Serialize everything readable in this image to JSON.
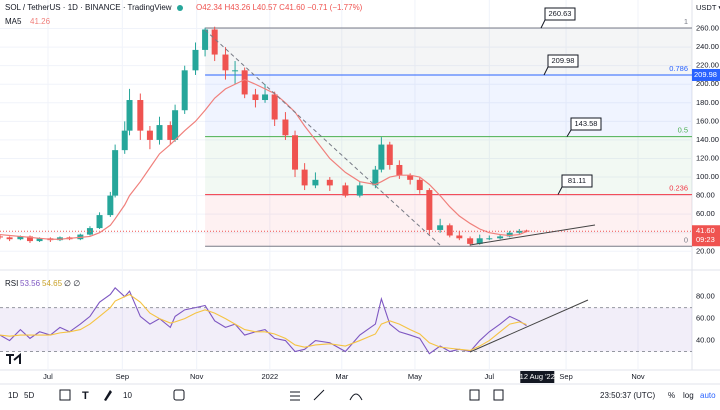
{
  "header": {
    "symbol": "SOL / TetherUS · 1D · BINANCE · TradingView",
    "ohlc": "O42.34 H43.26 L40.57 C41.60 −0.71 (−1.77%)",
    "ma_label": "MA5",
    "ma_value": "41.26",
    "currency": "USDT ▾"
  },
  "chart_data": [
    {
      "type": "candlestick",
      "x": [
        0,
        8,
        17,
        25,
        33,
        42,
        50,
        58,
        67,
        75,
        83,
        92,
        96,
        104,
        108,
        117,
        125,
        133,
        142,
        146,
        154,
        163,
        171,
        179,
        188,
        196,
        204,
        213,
        221,
        229,
        238,
        246,
        254,
        263,
        275,
        288,
        300,
        313,
        318,
        325,
        333,
        342,
        350,
        358,
        367,
        375,
        383,
        392,
        400,
        408,
        417,
        425,
        433,
        439
      ],
      "open": [
        36,
        35,
        33,
        36,
        31,
        34,
        32,
        35,
        33,
        38,
        45,
        59,
        80,
        129,
        150,
        183,
        150,
        140,
        156,
        140,
        172,
        215,
        237,
        259,
        232,
        215,
        215,
        189,
        183,
        189,
        162,
        145,
        108,
        91,
        97,
        91,
        80,
        91,
        108,
        135,
        113,
        102,
        97,
        86,
        43,
        48,
        37,
        34,
        28,
        34,
        34,
        36,
        40,
        42.34
      ],
      "high": [
        38,
        36,
        37,
        37,
        35,
        35,
        36,
        36,
        39,
        47,
        62,
        84,
        135,
        160,
        195,
        190,
        155,
        165,
        160,
        178,
        220,
        245,
        261,
        262,
        240,
        225,
        218,
        195,
        200,
        192,
        170,
        150,
        115,
        105,
        100,
        94,
        95,
        112,
        143,
        138,
        118,
        104,
        100,
        88,
        55,
        50,
        42,
        36,
        38,
        37,
        38,
        42,
        44,
        43.26
      ],
      "low": [
        33,
        31,
        32,
        29,
        30,
        30,
        31,
        32,
        32,
        37,
        44,
        57,
        78,
        125,
        145,
        140,
        130,
        135,
        135,
        138,
        168,
        210,
        230,
        225,
        205,
        200,
        185,
        175,
        180,
        155,
        140,
        100,
        86,
        88,
        85,
        78,
        78,
        88,
        105,
        108,
        98,
        92,
        82,
        38,
        40,
        35,
        32,
        26,
        27,
        32,
        33,
        35,
        38,
        40.57
      ],
      "close": [
        35,
        33,
        36,
        31,
        34,
        32,
        35,
        33,
        38,
        45,
        59,
        80,
        129,
        150,
        183,
        150,
        140,
        156,
        140,
        172,
        215,
        237,
        259,
        232,
        215,
        215,
        189,
        183,
        189,
        162,
        145,
        108,
        91,
        97,
        91,
        80,
        91,
        108,
        135,
        113,
        102,
        97,
        86,
        43,
        48,
        37,
        34,
        28,
        34,
        34,
        36,
        40,
        42,
        41.6
      ],
      "up_color": "#26a69a",
      "down_color": "#ef5350",
      "ma": {
        "color": "#f0807c",
        "values": [
          38,
          37,
          36,
          35,
          34,
          33,
          33,
          34,
          35,
          36,
          40,
          48,
          55,
          70,
          80,
          95,
          110,
          125,
          135,
          140,
          150,
          160,
          172,
          185,
          195,
          200,
          205,
          200,
          195,
          190,
          180,
          170,
          155,
          140,
          120,
          105,
          95,
          92,
          95,
          100,
          102,
          102,
          100,
          92,
          80,
          68,
          58,
          50,
          44,
          40,
          38,
          37,
          38,
          41.26
        ]
      },
      "xlim": [
        0,
        577
      ],
      "ylim": [
        16,
        280
      ],
      "xticks": [
        {
          "value": 40,
          "label": "Jul"
        },
        {
          "value": 102,
          "label": "Sep"
        },
        {
          "value": 164,
          "label": "Nov"
        },
        {
          "value": 225,
          "label": "2022"
        },
        {
          "value": 285,
          "label": "Mar"
        },
        {
          "value": 346,
          "label": "May"
        },
        {
          "value": 408,
          "label": "Jul"
        },
        {
          "value": 472,
          "label": "Sep"
        },
        {
          "value": 532,
          "label": "Nov"
        }
      ],
      "cursor": {
        "value": 448,
        "label": "12 Aug '22"
      },
      "yticks": [
        {
          "value": 20,
          "label": "20.00"
        },
        {
          "value": 40,
          "label": "40.00"
        },
        {
          "value": 60,
          "label": "60.00"
        },
        {
          "value": 80,
          "label": "80.00"
        },
        {
          "value": 100,
          "label": "100.00"
        },
        {
          "value": 120,
          "label": "120.00"
        },
        {
          "value": 140,
          "label": "140.00"
        },
        {
          "value": 160,
          "label": "160.00"
        },
        {
          "value": 180,
          "label": "180.00"
        },
        {
          "value": 200,
          "label": "200.00"
        },
        {
          "value": 220,
          "label": "220.00"
        },
        {
          "value": 240,
          "label": "240.00"
        },
        {
          "value": 260,
          "label": "260.00"
        }
      ],
      "last_price": {
        "value": 41.6,
        "label": "41.60",
        "countdown": "09:23"
      },
      "axis_tag": {
        "value": 209.98,
        "label": "209.98"
      },
      "fib": [
        {
          "level": "1",
          "value": 260.63,
          "label": "260.63",
          "color": "#787b86",
          "fill": "rgba(120,123,134,0.08)"
        },
        {
          "level": "0.786",
          "value": 209.98,
          "label": "209.98",
          "color": "#2962ff",
          "fill": "rgba(41,98,255,0.07)"
        },
        {
          "level": "0.5",
          "value": 143.58,
          "label": "143.58",
          "color": "#4caf50",
          "fill": "rgba(76,175,80,0.07)"
        },
        {
          "level": "0.236",
          "value": 81.11,
          "label": "81.11",
          "color": "#f23645",
          "fill": "rgba(242,54,69,0.07)"
        },
        {
          "level": "0",
          "value": 25.4,
          "color": "#787b86"
        }
      ]
    },
    {
      "type": "line",
      "title": "RSI",
      "extra": "∅ ∅",
      "series": [
        {
          "color": "#7e57c2",
          "values": [
            45,
            40,
            50,
            42,
            48,
            45,
            52,
            48,
            55,
            62,
            75,
            82,
            88,
            80,
            85,
            62,
            55,
            60,
            52,
            62,
            68,
            70,
            72,
            58,
            52,
            55,
            45,
            48,
            50,
            42,
            40,
            30,
            32,
            40,
            38,
            30,
            45,
            55,
            78,
            55,
            48,
            45,
            42,
            28,
            35,
            30,
            32,
            30,
            40,
            48,
            55,
            62,
            58,
            53.56
          ]
        },
        {
          "color": "#f5c342",
          "values": [
            45,
            44,
            45,
            45,
            45,
            45,
            47,
            48,
            50,
            55,
            62,
            70,
            76,
            80,
            82,
            75,
            65,
            60,
            56,
            57,
            60,
            65,
            68,
            65,
            60,
            55,
            50,
            48,
            48,
            46,
            42,
            36,
            34,
            36,
            37,
            35,
            40,
            46,
            55,
            58,
            55,
            50,
            46,
            38,
            34,
            33,
            32,
            31,
            35,
            40,
            48,
            55,
            57,
            54.65
          ]
        }
      ],
      "ylim": [
        15,
        97
      ],
      "yticks": [
        {
          "value": 40,
          "label": "40.00"
        },
        {
          "value": 60,
          "label": "60.00"
        },
        {
          "value": 80,
          "label": "80.00"
        }
      ],
      "bands": [
        30,
        70
      ],
      "band_fill": "rgba(126,87,194,0.1)"
    }
  ],
  "toolbar": {
    "ranges": [
      "1D",
      "5D"
    ],
    "size": "10",
    "clock": "23:50:37 (UTC)",
    "percent": "%",
    "log": "log",
    "auto": "auto"
  }
}
